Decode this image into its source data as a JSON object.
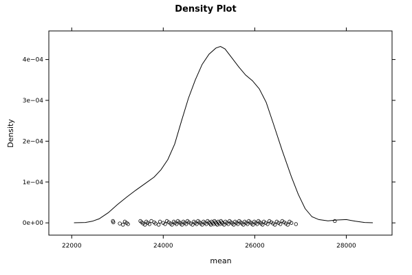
{
  "chart_data": {
    "type": "line",
    "title": "Density Plot",
    "xlabel": "mean",
    "ylabel": "Density",
    "xlim": [
      21500,
      29000
    ],
    "ylim": [
      -3e-05,
      0.00047
    ],
    "x_ticks": [
      {
        "value": 22000,
        "label": "22000"
      },
      {
        "value": 24000,
        "label": "24000"
      },
      {
        "value": 26000,
        "label": "26000"
      },
      {
        "value": 28000,
        "label": "28000"
      }
    ],
    "y_ticks": [
      {
        "value": 0,
        "label": "0e+00"
      },
      {
        "value": 0.0001,
        "label": "1e−04"
      },
      {
        "value": 0.0002,
        "label": "2e−04"
      },
      {
        "value": 0.0003,
        "label": "3e−04"
      },
      {
        "value": 0.0004,
        "label": "4e−04"
      }
    ],
    "density_curve": {
      "x": [
        22050,
        22300,
        22450,
        22600,
        22800,
        23000,
        23200,
        23400,
        23600,
        23800,
        23950,
        24100,
        24250,
        24400,
        24550,
        24700,
        24850,
        25000,
        25150,
        25250,
        25350,
        25500,
        25650,
        25800,
        25950,
        26100,
        26250,
        26400,
        26600,
        26800,
        26950,
        27100,
        27250,
        27400,
        27600,
        27800,
        28000,
        28200,
        28400,
        28580
      ],
      "y": [
        2e-07,
        1e-06,
        4e-06,
        1e-05,
        2.5e-05,
        4.5e-05,
        6.3e-05,
        8e-05,
        9.6e-05,
        0.000112,
        0.00013,
        0.000155,
        0.000193,
        0.00025,
        0.000305,
        0.00035,
        0.000388,
        0.000413,
        0.000428,
        0.000432,
        0.000426,
        0.000404,
        0.000382,
        0.000362,
        0.000348,
        0.000328,
        0.000295,
        0.000245,
        0.000177,
        0.000113,
        7e-05,
        3.5e-05,
        1.5e-05,
        8e-06,
        5e-06,
        7e-06,
        8e-06,
        4e-06,
        1e-06,
        2e-07
      ]
    },
    "rug_points": [
      22900,
      22910,
      23050,
      23120,
      23160,
      23200,
      23230,
      23500,
      23530,
      23560,
      23600,
      23630,
      23660,
      23700,
      23740,
      23800,
      23830,
      23900,
      23930,
      24000,
      24040,
      24080,
      24120,
      24160,
      24190,
      24230,
      24260,
      24290,
      24320,
      24350,
      24380,
      24410,
      24440,
      24470,
      24500,
      24530,
      24560,
      24600,
      24640,
      24670,
      24700,
      24730,
      24760,
      24790,
      24820,
      24850,
      24880,
      24910,
      24940,
      24970,
      25000,
      25020,
      25040,
      25060,
      25080,
      25100,
      25120,
      25140,
      25160,
      25180,
      25200,
      25220,
      25240,
      25260,
      25280,
      25300,
      25330,
      25360,
      25390,
      25420,
      25450,
      25480,
      25510,
      25540,
      25570,
      25600,
      25630,
      25660,
      25690,
      25720,
      25750,
      25780,
      25810,
      25840,
      25870,
      25900,
      25930,
      25960,
      25990,
      26020,
      26050,
      26080,
      26110,
      26140,
      26170,
      26200,
      26240,
      26280,
      26320,
      26360,
      26400,
      26440,
      26480,
      26520,
      26560,
      26600,
      26640,
      26680,
      26720,
      26760,
      26800,
      26900,
      27750
    ]
  }
}
